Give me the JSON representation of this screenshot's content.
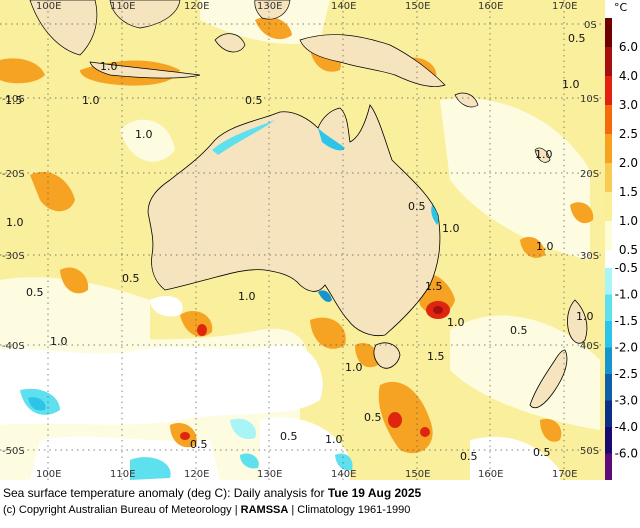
{
  "caption": {
    "prefix": "Sea surface temperature anomaly (deg C): Daily analysis for ",
    "date": "Tue 19 Aug 2025"
  },
  "credit": {
    "copyright": "(c) Copyright Australian Bureau of Meteorology | ",
    "system": "RAMSSA",
    "climatology": " | Climatology 1961-1990"
  },
  "map": {
    "lon_labels_top": [
      "100E",
      "110E",
      "120E",
      "130E",
      "140E",
      "150E",
      "160E",
      "170E"
    ],
    "lon_labels_bottom": [
      "100E",
      "110E",
      "120E",
      "130E",
      "140E",
      "150E",
      "160E",
      "170E"
    ],
    "lat_labels_left": [
      "-10S",
      "-20S",
      "-30S",
      "-40S",
      "-50S"
    ],
    "lat_labels_right": [
      "0S",
      "10S",
      "20S",
      "30S",
      "40S",
      "50S"
    ],
    "contour_labels": [
      "0.5",
      "1.0",
      "1.0",
      "1.5",
      "1.0",
      "1.0",
      "0.5",
      "1.0",
      "1.0",
      "1.0",
      "0.5",
      "0.5",
      "1.5",
      "1.0",
      "1.0",
      "0.5",
      "1.0",
      "1.0",
      "1.5",
      "0.5",
      "1.0",
      "0.5",
      "0.5",
      "0.5",
      "0.5",
      "0.5",
      "1.0",
      "1.0"
    ]
  },
  "colorbar": {
    "unit": "°C",
    "ticks": [
      "6.0",
      "4.0",
      "3.0",
      "2.5",
      "2.0",
      "1.5",
      "1.0",
      "0.5",
      "-0.5",
      "-1.0",
      "-1.5",
      "-2.0",
      "-2.5",
      "-3.0",
      "-4.0",
      "-6.0"
    ],
    "colors": {
      "6.0": "#6e0000",
      "4.0": "#a50f0f",
      "3.0": "#e0220e",
      "2.5": "#f26a0c",
      "2.0": "#f6a21e",
      "1.5": "#f8cc54",
      "1.0": "#faee96",
      "0.5": "#fdfcd8",
      "-0.5": "#a8f4f6",
      "-1.0": "#5fe0ee",
      "-1.5": "#2cc4e8",
      "-2.0": "#1694cc",
      "-2.5": "#0f5fa6",
      "-3.0": "#0a2f84",
      "-4.0": "#1a0a70",
      "-6.0": "#5e0a78"
    }
  }
}
